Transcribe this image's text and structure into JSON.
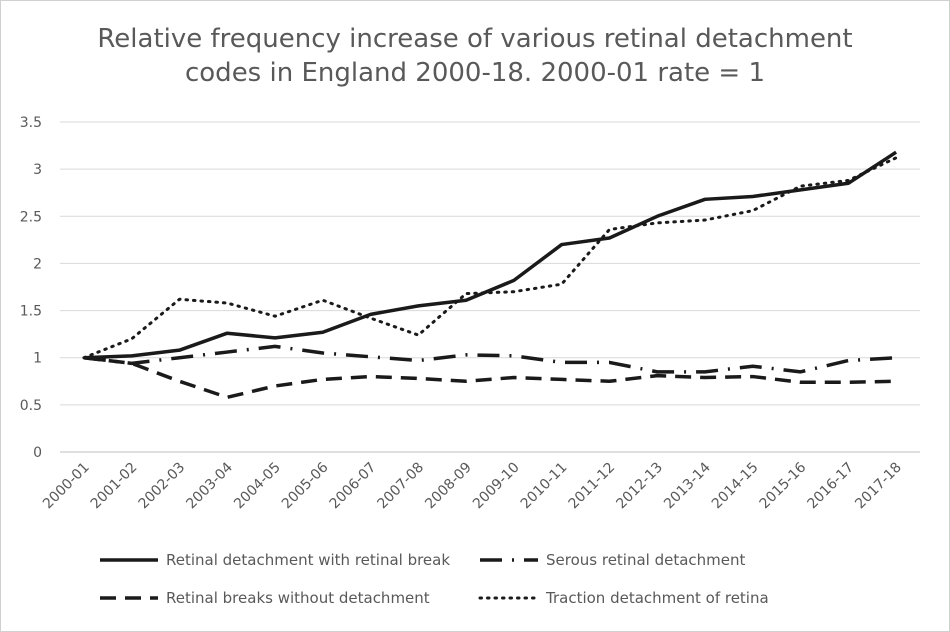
{
  "chart_data": {
    "type": "line",
    "title_line1": "Relative frequency increase of various retinal detachment",
    "title_line2": "codes in England 2000-18. 2000-01 rate = 1",
    "xlabel": "",
    "ylabel": "",
    "ylim": [
      0,
      3.5
    ],
    "yticks": [
      "0",
      "0.5",
      "1",
      "1.5",
      "2",
      "2.5",
      "3",
      "3.5"
    ],
    "grid": true,
    "legend_position": "bottom",
    "categories": [
      "2000-01",
      "2001-02",
      "2002-03",
      "2003-04",
      "2004-05",
      "2005-06",
      "2006-07",
      "2007-08",
      "2008-09",
      "2009-10",
      "2010-11",
      "2011-12",
      "2012-13",
      "2013-14",
      "2014-15",
      "2015-16",
      "2016-17",
      "2017-18"
    ],
    "series": [
      {
        "name": "Retinal detachment with retinal break",
        "style": "solid",
        "color": "#1a1a1a",
        "values": [
          1.0,
          1.02,
          1.08,
          1.26,
          1.21,
          1.27,
          1.46,
          1.55,
          1.61,
          1.82,
          2.2,
          2.27,
          2.5,
          2.68,
          2.71,
          2.78,
          2.85,
          3.18
        ]
      },
      {
        "name": "Serous retinal detachment",
        "style": "dashdot",
        "color": "#1a1a1a",
        "values": [
          1.0,
          0.94,
          1.0,
          1.06,
          1.12,
          1.05,
          1.01,
          0.97,
          1.03,
          1.02,
          0.95,
          0.95,
          0.85,
          0.85,
          0.91,
          0.85,
          0.97,
          1.0
        ]
      },
      {
        "name": "Retinal breaks without detachment",
        "style": "dashed",
        "color": "#1a1a1a",
        "values": [
          1.0,
          0.94,
          0.75,
          0.58,
          0.7,
          0.77,
          0.8,
          0.78,
          0.75,
          0.79,
          0.77,
          0.75,
          0.81,
          0.79,
          0.8,
          0.74,
          0.74,
          0.75
        ]
      },
      {
        "name": "Traction detachment of retina",
        "style": "dotted",
        "color": "#1a1a1a",
        "values": [
          1.0,
          1.2,
          1.62,
          1.58,
          1.44,
          1.61,
          1.42,
          1.24,
          1.68,
          1.7,
          1.78,
          2.36,
          2.43,
          2.46,
          2.56,
          2.82,
          2.88,
          3.12
        ]
      }
    ]
  }
}
